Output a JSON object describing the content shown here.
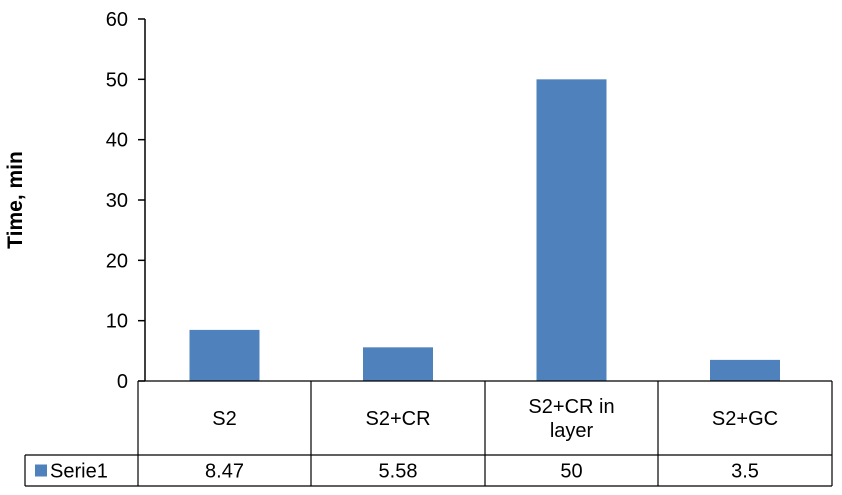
{
  "chart_data": {
    "type": "bar",
    "ylabel": "Time, min",
    "ylim": [
      0,
      60
    ],
    "yticks": [
      0,
      10,
      20,
      30,
      40,
      50,
      60
    ],
    "categories": [
      [
        "S2"
      ],
      [
        "S2+CR"
      ],
      [
        "S2+CR in",
        "layer"
      ],
      [
        "S2+GC"
      ]
    ],
    "series": [
      {
        "name": "Serie1",
        "values": [
          8.47,
          5.58,
          50,
          3.5
        ],
        "value_labels": [
          "8.47",
          "5.58",
          "50",
          "3.5"
        ],
        "color": "#4F81BD"
      }
    ],
    "grid": false,
    "data_table": true
  }
}
